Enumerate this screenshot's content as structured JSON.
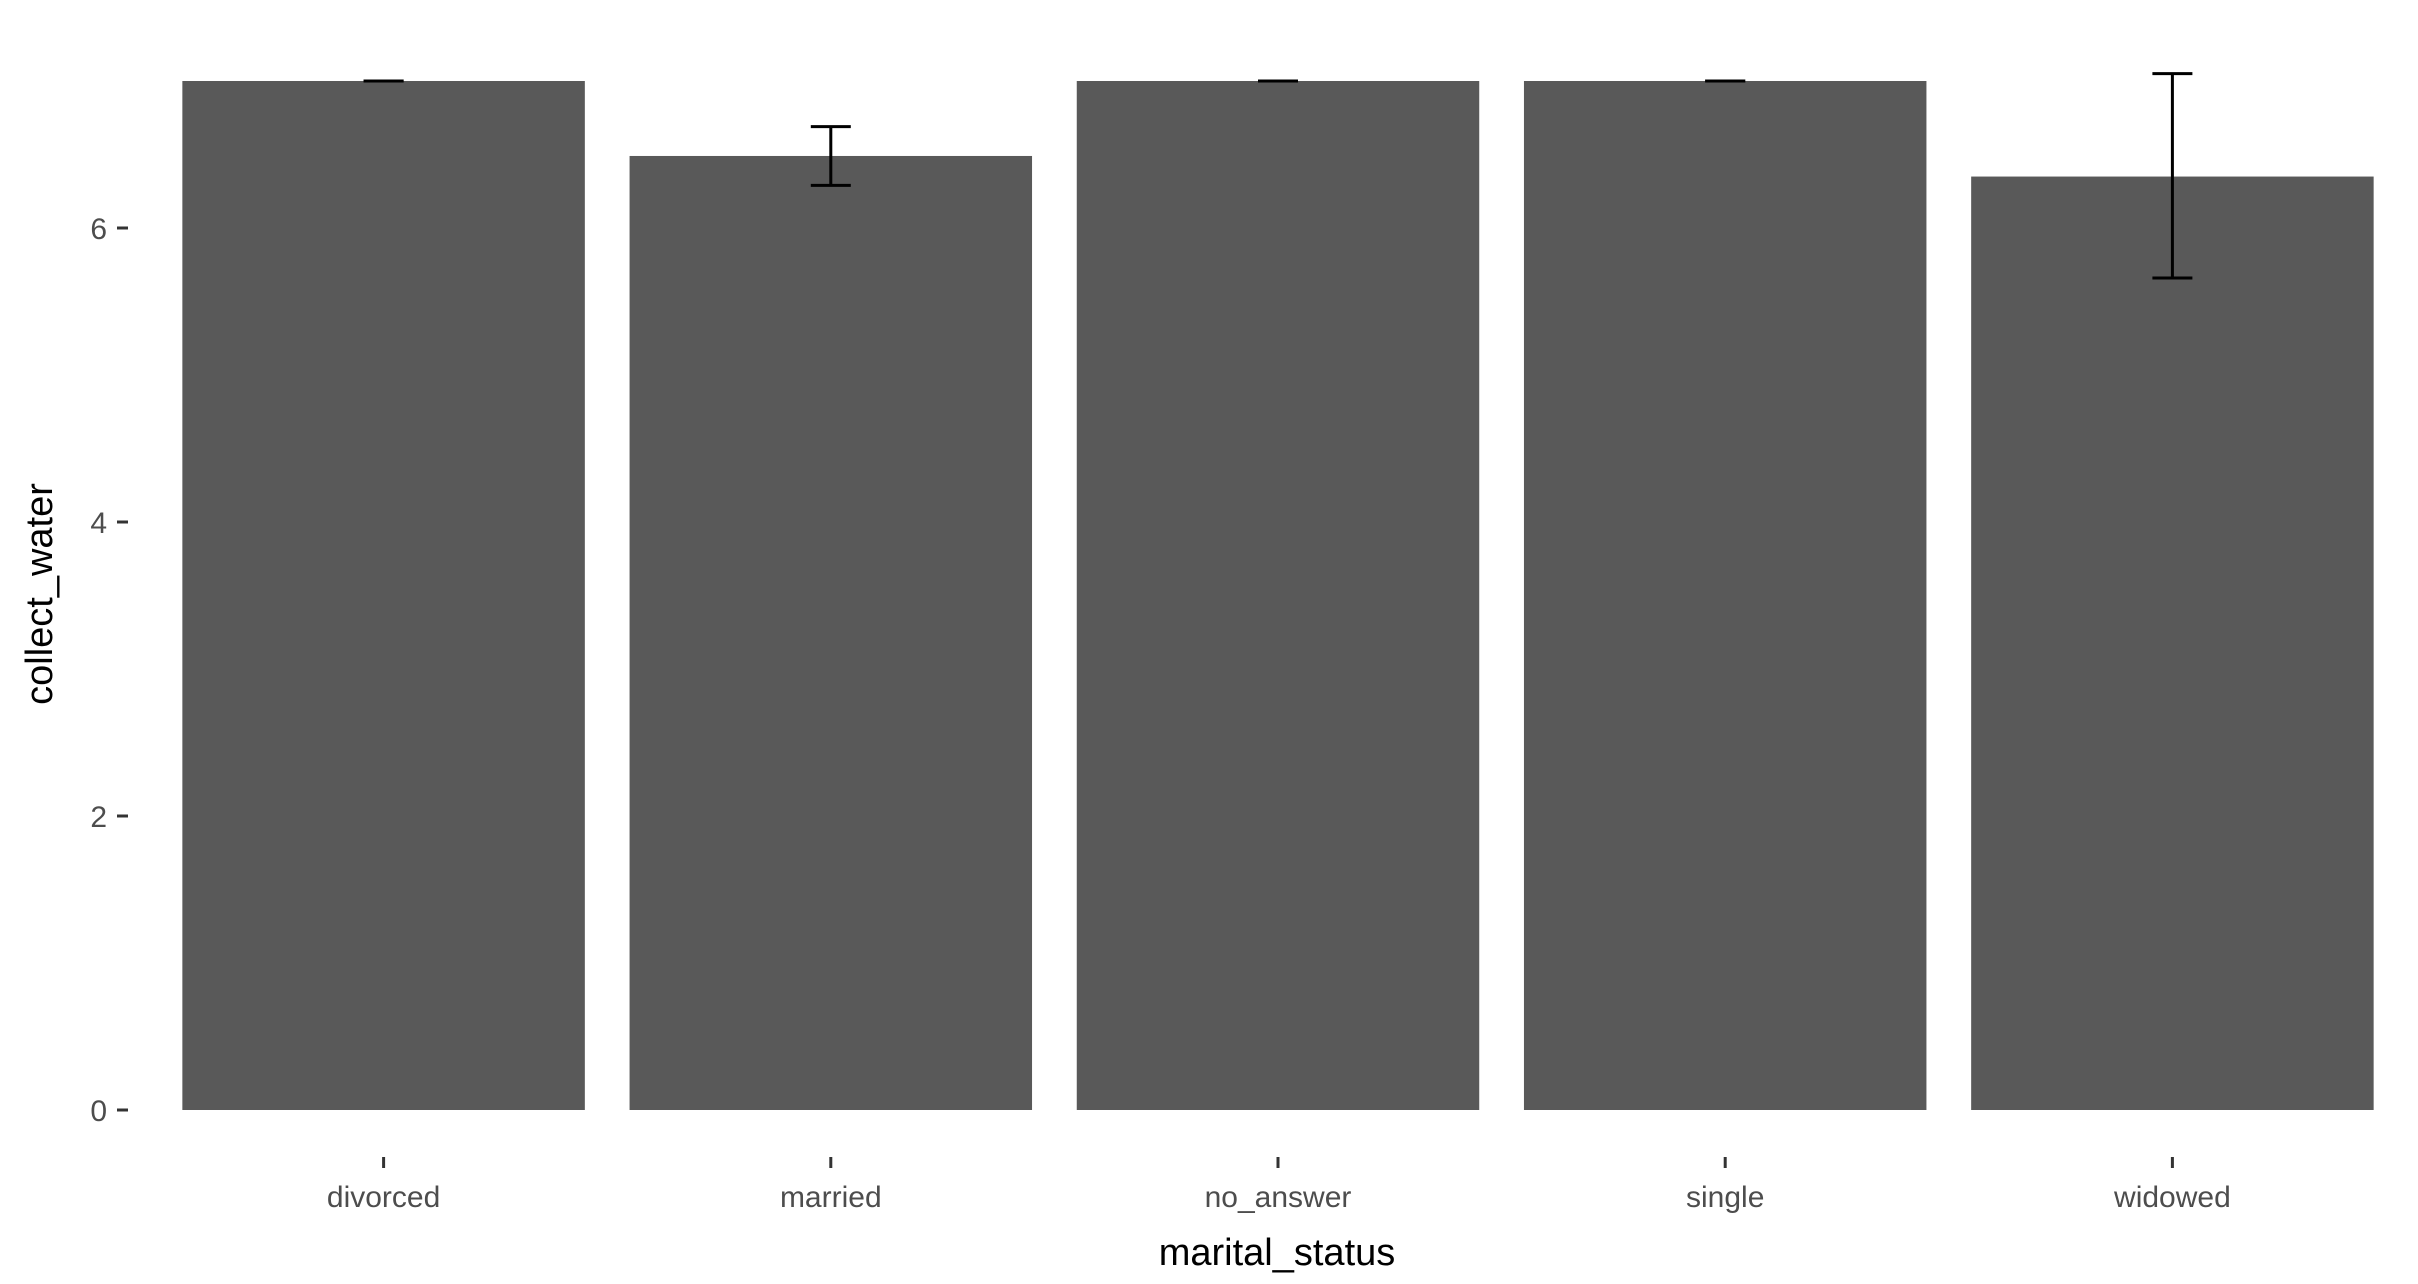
{
  "chart_data": {
    "type": "bar",
    "xlabel": "marital_status",
    "ylabel": "collect_water",
    "categories": [
      "divorced",
      "married",
      "no_answer",
      "single",
      "widowed"
    ],
    "values": [
      7.0,
      6.49,
      7.0,
      7.0,
      6.35
    ],
    "error_bars": [
      {
        "low": 7.0,
        "high": 7.0
      },
      {
        "low": 6.29,
        "high": 6.69
      },
      {
        "low": 7.0,
        "high": 7.0
      },
      {
        "low": 7.0,
        "high": 7.0
      },
      {
        "low": 5.66,
        "high": 7.05
      }
    ],
    "yticks": [
      0,
      2,
      4,
      6
    ],
    "ylim": [
      0,
      7.05
    ],
    "grid": false,
    "legend": "none",
    "colors": {
      "bar": "#595959",
      "errorbar": "#000000",
      "tick": "#333333",
      "tick_label": "#4d4d4d",
      "axis_title": "#000000"
    }
  }
}
